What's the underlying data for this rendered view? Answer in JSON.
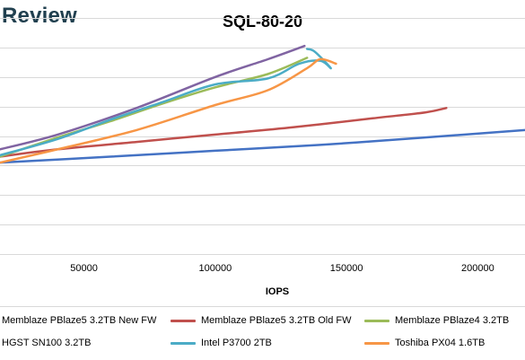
{
  "brand": "Review",
  "chart_data": {
    "type": "line",
    "title": "SQL-80-20",
    "xlabel": "IOPS",
    "ylabel": "",
    "xlim": [
      18000,
      218000
    ],
    "ylim": [
      0,
      8
    ],
    "x_ticks": [
      50000,
      100000,
      150000,
      200000
    ],
    "x_tick_labels": [
      "50000",
      "100000",
      "150000",
      "200000"
    ],
    "y_gridlines": [
      1,
      2,
      3,
      4,
      5,
      6,
      7,
      8
    ],
    "grid": "horizontal",
    "legend_position": "bottom",
    "series": [
      {
        "name": "Memblaze PBlaze5 3.2TB New FW",
        "color": "#4472c4",
        "points": [
          [
            18000,
            3.1
          ],
          [
            60000,
            3.3
          ],
          [
            100000,
            3.5
          ],
          [
            140000,
            3.7
          ],
          [
            180000,
            3.95
          ],
          [
            218000,
            4.2
          ]
        ]
      },
      {
        "name": "Memblaze PBlaze5 3.2TB Old FW",
        "color": "#c0504d",
        "points": [
          [
            18000,
            3.3
          ],
          [
            40000,
            3.55
          ],
          [
            70000,
            3.8
          ],
          [
            100000,
            4.05
          ],
          [
            130000,
            4.3
          ],
          [
            160000,
            4.6
          ],
          [
            180000,
            4.8
          ],
          [
            188000,
            4.95
          ]
        ]
      },
      {
        "name": "Memblaze PBlaze4 3.2TB",
        "color": "#9bbb59",
        "points": [
          [
            18000,
            3.3
          ],
          [
            40000,
            3.95
          ],
          [
            60000,
            4.5
          ],
          [
            80000,
            5.1
          ],
          [
            100000,
            5.65
          ],
          [
            120000,
            6.1
          ],
          [
            135000,
            6.65
          ]
        ]
      },
      {
        "name": "HGST SN100 3.2TB",
        "color": "#8064a2",
        "points": [
          [
            18000,
            3.55
          ],
          [
            40000,
            4.05
          ],
          [
            70000,
            4.95
          ],
          [
            100000,
            6.0
          ],
          [
            120000,
            6.6
          ],
          [
            134000,
            7.05
          ]
        ]
      },
      {
        "name": "Intel P3700 2TB",
        "color": "#4bacc6",
        "points": [
          [
            18000,
            3.35
          ],
          [
            40000,
            3.9
          ],
          [
            60000,
            4.55
          ],
          [
            80000,
            5.15
          ],
          [
            100000,
            5.75
          ],
          [
            120000,
            5.95
          ],
          [
            132000,
            6.45
          ],
          [
            140000,
            6.55
          ],
          [
            144000,
            6.3
          ],
          [
            138000,
            6.85
          ],
          [
            135000,
            6.95
          ]
        ]
      },
      {
        "name": "Toshiba PX04 1.6TB",
        "color": "#f79646",
        "points": [
          [
            18000,
            3.1
          ],
          [
            40000,
            3.55
          ],
          [
            70000,
            4.2
          ],
          [
            100000,
            5.05
          ],
          [
            120000,
            5.55
          ],
          [
            135000,
            6.3
          ],
          [
            140000,
            6.6
          ],
          [
            146000,
            6.45
          ]
        ]
      }
    ]
  }
}
